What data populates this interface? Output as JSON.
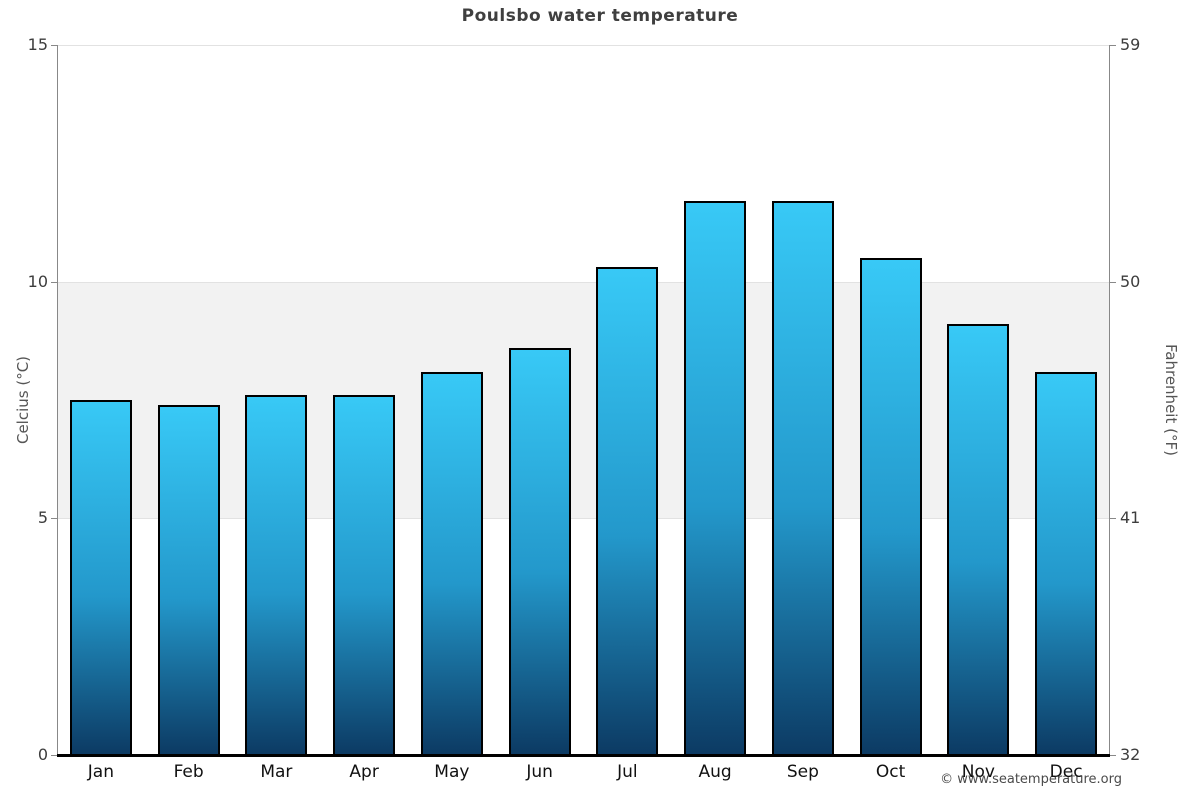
{
  "title": "Poulsbo water temperature",
  "footer_credit": "© www.seatemperature.org",
  "axes": {
    "left_label": "Celcius (°C)",
    "right_label": "Fahrenheit (°F)"
  },
  "chart_data": {
    "type": "bar",
    "title": "Poulsbo water temperature",
    "categories": [
      "Jan",
      "Feb",
      "Mar",
      "Apr",
      "May",
      "Jun",
      "Jul",
      "Aug",
      "Sep",
      "Oct",
      "Nov",
      "Dec"
    ],
    "values": [
      7.5,
      7.4,
      7.6,
      7.6,
      8.1,
      8.6,
      10.3,
      11.7,
      11.7,
      10.5,
      9.1,
      8.1
    ],
    "unit": "°C",
    "ylabel_left": "Celcius (°C)",
    "ylabel_right": "Fahrenheit (°F)",
    "ylim": [
      0,
      15
    ],
    "yticks_left": [
      0,
      5,
      10,
      15
    ],
    "yticks_right": [
      32,
      41,
      50,
      59
    ],
    "shaded_band_celsius": [
      5,
      10
    ],
    "grid": "horizontal",
    "legend": "none",
    "colors": {
      "bar_gradient_top": "#38c9f6",
      "bar_gradient_mid": "#2398cb",
      "bar_gradient_bottom": "#0c3a63",
      "bar_border": "#000000",
      "band_fill": "#f2f2f2",
      "gridline": "#e2e2e2",
      "axis_line": "#888888",
      "x_axis_line": "#000000",
      "title_text": "#3f3f3f",
      "tick_text": "#3d3d3d",
      "month_text": "#111111",
      "footer_text": "#4a4a4a"
    }
  }
}
